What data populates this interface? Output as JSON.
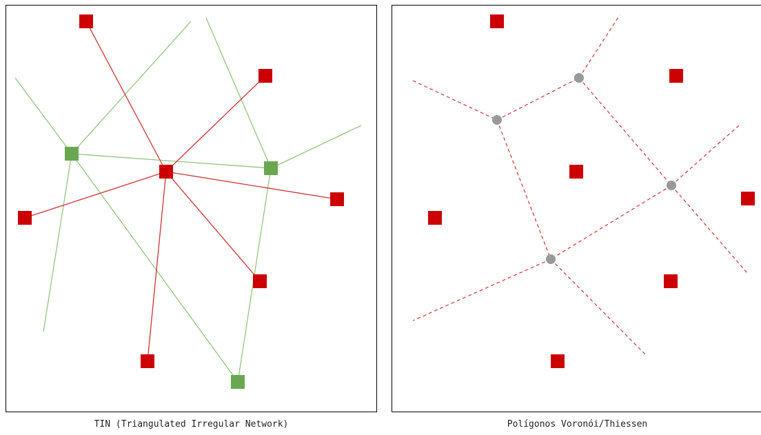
{
  "captions": {
    "tin": "TIN (Triangulated Irregular Network)",
    "voronoi": "Polígonos Voronói/Thiessen"
  },
  "colors": {
    "point": "#cc0000",
    "tin_node": "#6aa84f",
    "tin_edge_green": "#93c47d",
    "tin_edge_red": "#cc3333",
    "voronoi_edge": "#cc3333",
    "voronoi_vertex": "#999999",
    "border": "#000000"
  }
}
